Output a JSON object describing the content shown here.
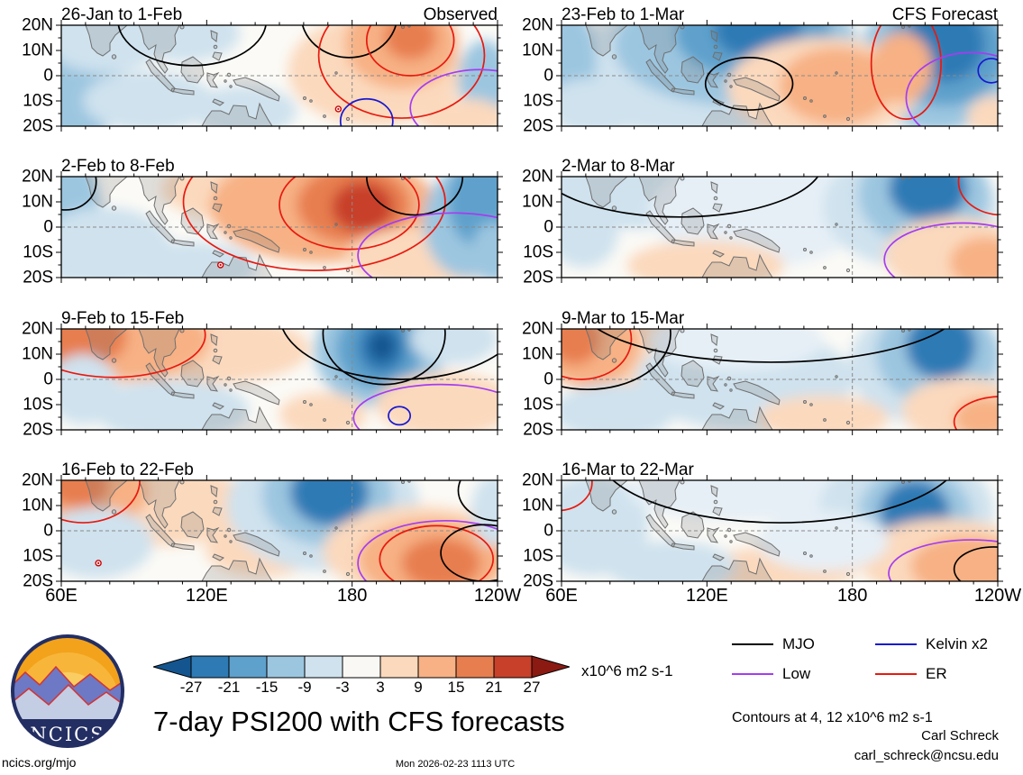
{
  "chart_data": {
    "type": "heatmap",
    "title": "7-day PSI200 with CFS forecasts",
    "units_label": "x10^6 m2 s-1",
    "contour_note": "Contours at 4, 12 x10^6 m2 s-1",
    "x_ticks": [
      "60E",
      "120E",
      "180",
      "120W"
    ],
    "y_ticks": [
      "20N",
      "10N",
      "0",
      "10S",
      "20S"
    ],
    "x_range_deg_east": [
      60,
      240
    ],
    "y_range_deg_north": [
      20,
      -20
    ],
    "columns": [
      "Observed",
      "CFS Forecast"
    ],
    "colorbar": {
      "ticks": [
        -27,
        -21,
        -15,
        -9,
        -3,
        3,
        9,
        15,
        21,
        27
      ],
      "colors": [
        "#14558f",
        "#2e7ab5",
        "#5ea1cc",
        "#9cc6e0",
        "#cfe2ee",
        "#f9f8f4",
        "#fbd9bd",
        "#f7b184",
        "#e77e4f",
        "#c8402a",
        "#8a1a12"
      ]
    },
    "legend": [
      {
        "label": "MJO",
        "color": "#000000"
      },
      {
        "label": "Kelvin x2",
        "color": "#1818cf"
      },
      {
        "label": "Low",
        "color": "#a43df0"
      },
      {
        "label": "ER",
        "color": "#e8190f"
      }
    ],
    "palette": {
      "b6": "#14558f",
      "b5": "#2e7ab5",
      "b4": "#5ea1cc",
      "b3": "#9cc6e0",
      "b2": "#cfe2ee",
      "b1": "#e6eff6",
      "o1": "#fbd9bd",
      "o2": "#f7b184",
      "o3": "#e77e4f",
      "o4": "#c8402a"
    },
    "contour_colors": {
      "black": "#000000",
      "red": "#e8190f",
      "purple": "#a43df0",
      "blue": "#1818cf"
    },
    "panels": [
      {
        "title": "26-Jan to 1-Feb",
        "corner_label": "Observed",
        "blobs": [
          [
            0.04,
            0.45,
            0.1,
            0.75,
            "b3"
          ],
          [
            0.1,
            0.12,
            0.14,
            0.35,
            "b2"
          ],
          [
            0.28,
            0.08,
            0.13,
            0.28,
            "b2"
          ],
          [
            0.2,
            0.75,
            0.15,
            0.3,
            "b2"
          ],
          [
            0.42,
            0.85,
            0.12,
            0.25,
            "b2"
          ],
          [
            0.72,
            0.45,
            0.2,
            0.55,
            "o1"
          ],
          [
            0.78,
            0.18,
            0.13,
            0.45,
            "o2"
          ],
          [
            0.8,
            0.12,
            0.06,
            0.22,
            "o3"
          ],
          [
            0.97,
            0.55,
            0.06,
            0.4,
            "b3"
          ],
          [
            0.92,
            0.92,
            0.1,
            0.2,
            "o1"
          ]
        ],
        "contours": [
          [
            0.3,
            -0.05,
            0.17,
            0.45,
            "black"
          ],
          [
            0.66,
            -0.1,
            0.11,
            0.42,
            "black"
          ],
          [
            0.78,
            0.3,
            0.19,
            0.62,
            "red"
          ],
          [
            0.8,
            0.15,
            0.1,
            0.35,
            "red"
          ],
          [
            0.96,
            0.82,
            0.16,
            0.38,
            "purple"
          ],
          [
            0.7,
            0.95,
            0.06,
            0.22,
            "blue"
          ]
        ],
        "cyclones": [
          [
            0.635,
            0.83
          ]
        ]
      },
      {
        "title": "23-Feb to 1-Mar",
        "corner_label": "CFS Forecast",
        "blobs": [
          [
            0.3,
            0.45,
            0.3,
            0.65,
            "b2"
          ],
          [
            0.4,
            0.2,
            0.28,
            0.6,
            "b3"
          ],
          [
            0.44,
            0.08,
            0.18,
            0.45,
            "b4"
          ],
          [
            0.45,
            0.05,
            0.1,
            0.28,
            "b5"
          ],
          [
            0.86,
            0.35,
            0.18,
            0.7,
            "b3"
          ],
          [
            0.88,
            0.25,
            0.14,
            0.55,
            "b4"
          ],
          [
            0.88,
            0.18,
            0.09,
            0.38,
            "b5"
          ],
          [
            0.02,
            0.35,
            0.06,
            0.5,
            "b3"
          ],
          [
            0.08,
            0.8,
            0.12,
            0.28,
            "b2"
          ],
          [
            0.6,
            0.62,
            0.22,
            0.5,
            "o1"
          ],
          [
            0.63,
            0.6,
            0.13,
            0.38,
            "o2"
          ],
          [
            0.78,
            0.42,
            0.07,
            0.35,
            "o2"
          ],
          [
            0.99,
            0.9,
            0.06,
            0.2,
            "o1"
          ]
        ],
        "contours": [
          [
            0.43,
            0.58,
            0.1,
            0.26,
            "black"
          ],
          [
            0.79,
            0.38,
            0.08,
            0.55,
            "red"
          ],
          [
            0.94,
            0.72,
            0.15,
            0.45,
            "purple"
          ],
          [
            0.985,
            0.45,
            0.03,
            0.12,
            "blue"
          ]
        ],
        "cyclones": []
      },
      {
        "title": "2-Feb to 8-Feb",
        "corner_label": "",
        "blobs": [
          [
            0.02,
            0.4,
            0.07,
            0.65,
            "b3"
          ],
          [
            0.1,
            0.7,
            0.15,
            0.4,
            "b2"
          ],
          [
            0.3,
            0.9,
            0.15,
            0.25,
            "b2"
          ],
          [
            0.45,
            0.12,
            0.22,
            0.35,
            "o1"
          ],
          [
            0.6,
            0.3,
            0.26,
            0.55,
            "o2"
          ],
          [
            0.67,
            0.28,
            0.13,
            0.38,
            "o3"
          ],
          [
            0.69,
            0.3,
            0.07,
            0.25,
            "o4"
          ],
          [
            0.83,
            0.8,
            0.18,
            0.3,
            "o1"
          ],
          [
            0.93,
            0.45,
            0.1,
            0.55,
            "b3"
          ],
          [
            0.965,
            0.25,
            0.08,
            0.45,
            "b4"
          ],
          [
            0.99,
            0.75,
            0.05,
            0.3,
            "b3"
          ]
        ],
        "contours": [
          [
            0.58,
            0.25,
            0.3,
            0.68,
            "red"
          ],
          [
            0.66,
            0.28,
            0.16,
            0.44,
            "red"
          ],
          [
            0.81,
            0.0,
            0.11,
            0.38,
            "black"
          ],
          [
            0.9,
            0.78,
            0.22,
            0.42,
            "purple"
          ],
          [
            0.01,
            0.05,
            0.07,
            0.28,
            "black"
          ]
        ],
        "cyclones": [
          [
            0.365,
            0.875
          ]
        ]
      },
      {
        "title": "2-Mar to 8-Mar",
        "corner_label": "",
        "blobs": [
          [
            0.18,
            0.12,
            0.28,
            0.4,
            "b2"
          ],
          [
            0.45,
            0.35,
            0.25,
            0.55,
            "b1"
          ],
          [
            0.8,
            0.3,
            0.2,
            0.6,
            "b2"
          ],
          [
            0.83,
            0.18,
            0.15,
            0.5,
            "b3"
          ],
          [
            0.84,
            0.12,
            0.09,
            0.32,
            "b5"
          ],
          [
            0.05,
            0.55,
            0.08,
            0.35,
            "b2"
          ],
          [
            0.9,
            0.78,
            0.16,
            0.38,
            "o1"
          ],
          [
            0.97,
            0.85,
            0.08,
            0.25,
            "o2"
          ],
          [
            0.33,
            0.88,
            0.18,
            0.25,
            "o1"
          ]
        ],
        "contours": [
          [
            0.27,
            -0.15,
            0.33,
            0.55,
            "black"
          ],
          [
            1.01,
            0.05,
            0.1,
            0.33,
            "red"
          ],
          [
            0.92,
            0.82,
            0.18,
            0.36,
            "purple"
          ]
        ],
        "cyclones": []
      },
      {
        "title": "9-Feb to 15-Feb",
        "corner_label": "",
        "blobs": [
          [
            0.32,
            0.2,
            0.25,
            0.35,
            "o1"
          ],
          [
            0.12,
            0.12,
            0.22,
            0.4,
            "o2"
          ],
          [
            0.05,
            0.08,
            0.1,
            0.3,
            "o3"
          ],
          [
            0.05,
            0.6,
            0.08,
            0.35,
            "b2"
          ],
          [
            0.25,
            0.8,
            0.18,
            0.3,
            "b2"
          ],
          [
            0.73,
            0.22,
            0.15,
            0.55,
            "b3"
          ],
          [
            0.73,
            0.2,
            0.1,
            0.4,
            "b4"
          ],
          [
            0.735,
            0.18,
            0.055,
            0.26,
            "b5"
          ],
          [
            0.735,
            0.17,
            0.03,
            0.15,
            "b6"
          ],
          [
            0.9,
            0.1,
            0.1,
            0.25,
            "b2"
          ],
          [
            0.88,
            0.75,
            0.16,
            0.32,
            "o1"
          ],
          [
            0.6,
            0.85,
            0.1,
            0.22,
            "o1"
          ]
        ],
        "contours": [
          [
            0.12,
            0.06,
            0.21,
            0.42,
            "red"
          ],
          [
            0.74,
            0.05,
            0.14,
            0.5,
            "black"
          ],
          [
            0.78,
            -0.15,
            0.28,
            0.65,
            "black"
          ],
          [
            0.87,
            0.88,
            0.2,
            0.33,
            "purple"
          ],
          [
            0.775,
            0.86,
            0.025,
            0.09,
            "blue"
          ]
        ],
        "cyclones": []
      },
      {
        "title": "9-Mar to 15-Mar",
        "corner_label": "",
        "blobs": [
          [
            0.16,
            0.25,
            0.18,
            0.45,
            "o1"
          ],
          [
            0.06,
            0.15,
            0.12,
            0.42,
            "o2"
          ],
          [
            0.03,
            0.1,
            0.06,
            0.25,
            "o3"
          ],
          [
            0.42,
            0.5,
            0.25,
            0.5,
            "b2"
          ],
          [
            0.4,
            0.12,
            0.2,
            0.3,
            "b1"
          ],
          [
            0.84,
            0.35,
            0.18,
            0.6,
            "b2"
          ],
          [
            0.86,
            0.25,
            0.14,
            0.5,
            "b3"
          ],
          [
            0.87,
            0.17,
            0.08,
            0.33,
            "b5"
          ],
          [
            0.92,
            0.8,
            0.14,
            0.32,
            "o1"
          ],
          [
            0.97,
            0.88,
            0.07,
            0.2,
            "o2"
          ],
          [
            0.12,
            0.82,
            0.14,
            0.28,
            "b2"
          ],
          [
            0.6,
            0.88,
            0.15,
            0.22,
            "o1"
          ]
        ],
        "contours": [
          [
            0.045,
            0.1,
            0.115,
            0.4,
            "red"
          ],
          [
            0.06,
            0.05,
            0.19,
            0.55,
            "black"
          ],
          [
            0.48,
            -0.25,
            0.44,
            0.58,
            "black"
          ],
          [
            1.01,
            0.92,
            0.11,
            0.25,
            "red"
          ]
        ],
        "cyclones": []
      },
      {
        "title": "16-Feb to 22-Feb",
        "corner_label": "",
        "blobs": [
          [
            0.22,
            0.25,
            0.22,
            0.4,
            "o1"
          ],
          [
            0.07,
            0.1,
            0.13,
            0.38,
            "o2"
          ],
          [
            0.04,
            0.05,
            0.07,
            0.22,
            "o3"
          ],
          [
            0.08,
            0.62,
            0.13,
            0.35,
            "b2"
          ],
          [
            0.46,
            0.68,
            0.13,
            0.28,
            "o1"
          ],
          [
            0.6,
            0.25,
            0.22,
            0.65,
            "b2"
          ],
          [
            0.61,
            0.15,
            0.15,
            0.5,
            "b3"
          ],
          [
            0.615,
            0.12,
            0.09,
            0.33,
            "b5"
          ],
          [
            0.82,
            0.7,
            0.22,
            0.45,
            "o1"
          ],
          [
            0.85,
            0.78,
            0.17,
            0.4,
            "o2"
          ],
          [
            0.87,
            0.82,
            0.09,
            0.25,
            "o3"
          ],
          [
            0.99,
            0.3,
            0.05,
            0.35,
            "b2"
          ]
        ],
        "contours": [
          [
            0.05,
            0.0,
            0.13,
            0.42,
            "red"
          ],
          [
            0.86,
            0.78,
            0.13,
            0.33,
            "red"
          ],
          [
            0.88,
            0.82,
            0.2,
            0.42,
            "purple"
          ],
          [
            0.97,
            0.72,
            0.1,
            0.28,
            "black"
          ],
          [
            1.0,
            0.1,
            0.09,
            0.3,
            "black"
          ]
        ],
        "cyclones": [
          [
            0.085,
            0.82
          ]
        ]
      },
      {
        "title": "16-Mar to 22-Mar",
        "corner_label": "",
        "blobs": [
          [
            0.07,
            0.45,
            0.13,
            0.5,
            "b2"
          ],
          [
            0.4,
            0.1,
            0.25,
            0.3,
            "b1"
          ],
          [
            0.79,
            0.3,
            0.2,
            0.6,
            "b2"
          ],
          [
            0.81,
            0.35,
            0.13,
            0.48,
            "b3"
          ],
          [
            0.81,
            0.33,
            0.08,
            0.33,
            "b5"
          ],
          [
            0.88,
            0.78,
            0.2,
            0.4,
            "o1"
          ],
          [
            0.93,
            0.85,
            0.13,
            0.3,
            "o2"
          ],
          [
            0.5,
            0.88,
            0.18,
            0.22,
            "o1"
          ],
          [
            0.25,
            0.85,
            0.15,
            0.25,
            "b2"
          ],
          [
            0.6,
            0.6,
            0.15,
            0.3,
            "b1"
          ]
        ],
        "contours": [
          [
            0.5,
            -0.3,
            0.42,
            0.72,
            "black"
          ],
          [
            -0.01,
            0.02,
            0.08,
            0.28,
            "red"
          ],
          [
            0.94,
            0.92,
            0.19,
            0.33,
            "purple"
          ],
          [
            0.99,
            0.88,
            0.09,
            0.22,
            "black"
          ]
        ],
        "cyclones": []
      }
    ]
  },
  "branding": {
    "logo_text": "NCICS"
  },
  "credits": {
    "author": "Carl Schreck",
    "email": "carl_schreck@ncsu.edu",
    "site": "ncics.org/mjo",
    "timestamp": "Mon 2026-02-23 1113 UTC"
  }
}
